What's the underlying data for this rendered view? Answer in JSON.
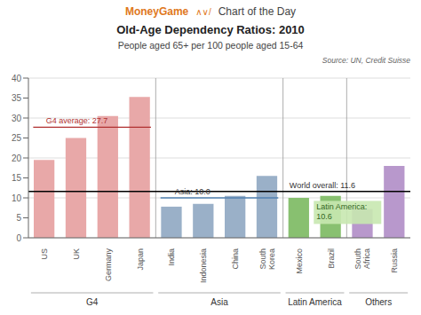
{
  "chart_data": {
    "type": "bar",
    "header": "MoneyGame",
    "header_icon": "∧∨/",
    "header_note": "Chart of the Day",
    "title": "Old-Age Dependency Ratios: 2010",
    "subtitle": "People aged 65+ per 100 people aged 15-64",
    "source": "Source: UN, Credit Suisse",
    "categories": [
      "US",
      "UK",
      "Germany",
      "Japan",
      "India",
      "Indonesia",
      "China",
      "South\nKorea",
      "Mexico",
      "Brazil",
      "South\nAfrica",
      "Russia"
    ],
    "values": [
      19.5,
      25.0,
      30.5,
      35.3,
      7.8,
      8.5,
      10.5,
      15.5,
      10.0,
      10.5,
      7.2,
      18.0
    ],
    "groups": [
      "G4",
      "G4",
      "G4",
      "G4",
      "Asia",
      "Asia",
      "Asia",
      "Asia",
      "Latin America",
      "Latin America",
      "Others",
      "Others"
    ],
    "colors": [
      "#e8a8a8",
      "#e8a8a8",
      "#e8a8a8",
      "#e8a8a8",
      "#9ab0c8",
      "#9ab0c8",
      "#9ab0c8",
      "#9ab0c8",
      "#88c070",
      "#88c070",
      "#b898cc",
      "#b898cc"
    ],
    "reference_lines": [
      {
        "value": 27.7,
        "label": "G4 average: 27.7",
        "color": "#b03030",
        "group": "G4"
      },
      {
        "value": 10.0,
        "label": "Asia: 10.0",
        "color": "#5080b0",
        "group": "Asia"
      },
      {
        "value": 11.6,
        "label": "World overall: 11.6",
        "color": "#000000"
      }
    ],
    "annotations": [
      {
        "text": "Latin America:\n10.6",
        "group": "Latin America"
      }
    ],
    "ylim": [
      0,
      40
    ],
    "yticks": [
      0,
      5,
      10,
      15,
      20,
      25,
      30,
      35,
      40
    ],
    "grid": true
  }
}
